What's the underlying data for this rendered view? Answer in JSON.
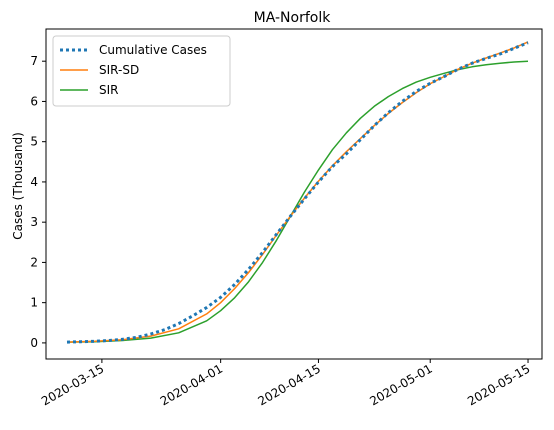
{
  "chart_data": {
    "type": "line",
    "title": "MA-Norfolk",
    "xlabel": "",
    "ylabel": "Cases (Thousand)",
    "x_ticks": [
      "2020-03-15",
      "2020-04-01",
      "2020-04-15",
      "2020-05-01",
      "2020-05-15"
    ],
    "y_ticks": [
      "0",
      "1",
      "2",
      "3",
      "4",
      "5",
      "6",
      "7"
    ],
    "xlim": [
      "2020-03-07",
      "2020-05-17"
    ],
    "ylim": [
      -0.4,
      7.8
    ],
    "grid": false,
    "legend_position": "top-left",
    "series": [
      {
        "name": "Cumulative Cases",
        "style": "dotted",
        "color": "#1f77b4",
        "x": [
          "2020-03-10",
          "2020-03-12",
          "2020-03-14",
          "2020-03-16",
          "2020-03-18",
          "2020-03-20",
          "2020-03-22",
          "2020-03-24",
          "2020-03-26",
          "2020-03-28",
          "2020-03-30",
          "2020-04-01",
          "2020-04-03",
          "2020-04-05",
          "2020-04-07",
          "2020-04-09",
          "2020-04-11",
          "2020-04-13",
          "2020-04-15",
          "2020-04-17",
          "2020-04-19",
          "2020-04-21",
          "2020-04-23",
          "2020-04-25",
          "2020-04-27",
          "2020-04-29",
          "2020-05-01",
          "2020-05-03",
          "2020-05-05",
          "2020-05-07",
          "2020-05-09",
          "2020-05-11",
          "2020-05-13",
          "2020-05-15"
        ],
        "y": [
          0.02,
          0.03,
          0.04,
          0.06,
          0.09,
          0.14,
          0.22,
          0.33,
          0.48,
          0.67,
          0.88,
          1.13,
          1.45,
          1.83,
          2.25,
          2.7,
          3.15,
          3.58,
          4.0,
          4.38,
          4.7,
          5.05,
          5.4,
          5.72,
          6.0,
          6.25,
          6.45,
          6.62,
          6.8,
          6.95,
          7.07,
          7.18,
          7.32,
          7.46
        ]
      },
      {
        "name": "SIR-SD",
        "style": "solid",
        "color": "#ff7f0e",
        "x": [
          "2020-03-10",
          "2020-03-14",
          "2020-03-18",
          "2020-03-22",
          "2020-03-26",
          "2020-03-30",
          "2020-04-01",
          "2020-04-03",
          "2020-04-05",
          "2020-04-07",
          "2020-04-09",
          "2020-04-11",
          "2020-04-13",
          "2020-04-15",
          "2020-04-17",
          "2020-04-19",
          "2020-04-21",
          "2020-04-23",
          "2020-04-25",
          "2020-04-27",
          "2020-04-29",
          "2020-05-01",
          "2020-05-03",
          "2020-05-05",
          "2020-05-07",
          "2020-05-09",
          "2020-05-11",
          "2020-05-13",
          "2020-05-15"
        ],
        "y": [
          0.02,
          0.04,
          0.08,
          0.17,
          0.35,
          0.72,
          1.0,
          1.35,
          1.75,
          2.2,
          2.68,
          3.15,
          3.6,
          4.02,
          4.4,
          4.75,
          5.08,
          5.4,
          5.7,
          5.97,
          6.22,
          6.44,
          6.62,
          6.8,
          6.95,
          7.08,
          7.2,
          7.33,
          7.48
        ]
      },
      {
        "name": "SIR",
        "style": "solid",
        "color": "#2ca02c",
        "x": [
          "2020-03-10",
          "2020-03-14",
          "2020-03-18",
          "2020-03-22",
          "2020-03-26",
          "2020-03-30",
          "2020-04-01",
          "2020-04-03",
          "2020-04-05",
          "2020-04-07",
          "2020-04-09",
          "2020-04-11",
          "2020-04-13",
          "2020-04-15",
          "2020-04-17",
          "2020-04-19",
          "2020-04-21",
          "2020-04-23",
          "2020-04-25",
          "2020-04-27",
          "2020-04-29",
          "2020-05-01",
          "2020-05-03",
          "2020-05-05",
          "2020-05-07",
          "2020-05-09",
          "2020-05-11",
          "2020-05-13",
          "2020-05-15"
        ],
        "y": [
          0.02,
          0.03,
          0.06,
          0.12,
          0.25,
          0.55,
          0.8,
          1.12,
          1.52,
          2.0,
          2.55,
          3.15,
          3.75,
          4.3,
          4.8,
          5.22,
          5.58,
          5.88,
          6.12,
          6.32,
          6.48,
          6.6,
          6.7,
          6.79,
          6.86,
          6.91,
          6.95,
          6.98,
          7.0
        ]
      }
    ]
  }
}
